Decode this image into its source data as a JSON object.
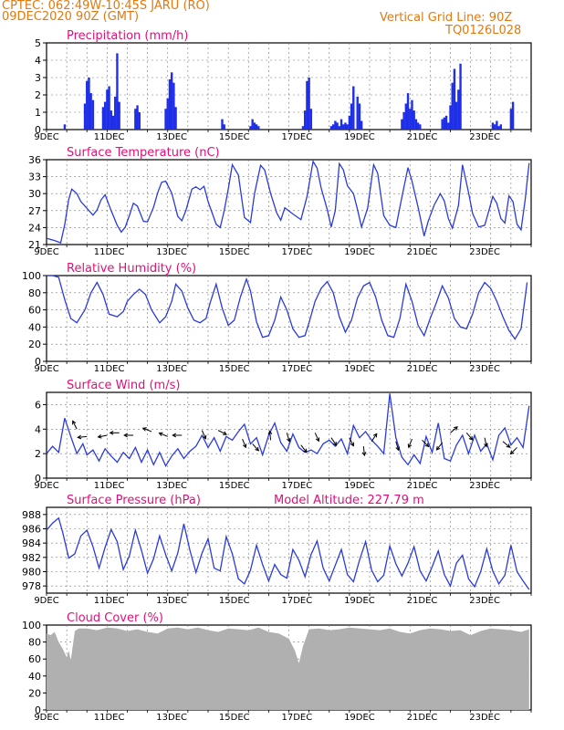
{
  "header": {
    "line1": "CPTEC:  062:49W-10:45S  JARU (RO)",
    "line2": "09DEC2020 90Z (GMT)",
    "grid_note": "Vertical Grid Line: 90Z",
    "run_code": "TQ0126L028"
  },
  "colors": {
    "header": "#e07a10",
    "title": "#e0107a",
    "line": "#2b3bd8",
    "bar": "#1f2fe8",
    "cloud": "#b0b0b0"
  },
  "chart_data": [
    {
      "id": "precip",
      "type": "bar",
      "title": "Precipitation (mm/h)",
      "ylim": [
        0,
        5
      ],
      "yticks": [
        "0",
        "1",
        "2",
        "3",
        "4",
        "5"
      ],
      "xticks": [
        "9DEC",
        "11DEC",
        "13DEC",
        "15DEC",
        "17DEC",
        "19DEC",
        "21DEC",
        "23DEC"
      ],
      "x": [
        0.9,
        1.9,
        2.0,
        2.1,
        2.2,
        2.3,
        2.8,
        2.9,
        3.0,
        3.1,
        3.2,
        3.3,
        3.4,
        3.5,
        3.6,
        4.4,
        4.5,
        4.6,
        5.9,
        6.0,
        6.1,
        6.2,
        6.3,
        6.4,
        8.7,
        8.8,
        10.1,
        10.2,
        10.3,
        10.4,
        10.5,
        12.7,
        12.8,
        12.9,
        13.0,
        13.1,
        14.1,
        14.2,
        14.3,
        14.4,
        14.5,
        14.6,
        14.7,
        14.8,
        14.9,
        15.0,
        15.1,
        15.2,
        15.4,
        15.5,
        15.6,
        17.6,
        17.7,
        17.8,
        17.9,
        18.0,
        18.1,
        18.2,
        18.3,
        18.4,
        18.5,
        19.6,
        19.7,
        19.8,
        19.9,
        20.0,
        20.1,
        20.2,
        20.3,
        20.4,
        20.5,
        22.1,
        22.2,
        22.3,
        22.4,
        22.5,
        23.0,
        23.1
      ],
      "values": [
        0.3,
        1.5,
        2.8,
        3.0,
        2.1,
        1.7,
        1.3,
        1.6,
        2.3,
        2.5,
        1.1,
        0.8,
        1.9,
        4.4,
        1.6,
        1.2,
        1.4,
        1.0,
        1.2,
        1.8,
        2.9,
        3.3,
        2.7,
        1.3,
        0.6,
        0.3,
        0.2,
        0.6,
        0.4,
        0.3,
        0.2,
        0.2,
        1.1,
        2.8,
        3.0,
        1.2,
        0.2,
        0.3,
        0.5,
        0.4,
        0.2,
        0.6,
        0.3,
        0.4,
        0.3,
        0.8,
        1.5,
        2.5,
        1.9,
        1.5,
        0.5,
        0.6,
        1.0,
        1.5,
        2.1,
        1.2,
        1.7,
        1.1,
        0.6,
        0.4,
        0.3,
        0.6,
        0.7,
        0.8,
        0.4,
        1.4,
        2.7,
        3.5,
        1.6,
        2.3,
        3.8,
        0.4,
        0.3,
        0.5,
        0.2,
        0.3,
        1.2,
        1.6
      ]
    },
    {
      "id": "temp",
      "type": "line",
      "title": "Surface Temperature (nC)",
      "ylim": [
        21,
        36
      ],
      "yticks": [
        "21",
        "24",
        "27",
        "30",
        "33",
        "36"
      ],
      "xticks": [
        "9DEC",
        "11DEC",
        "13DEC",
        "15DEC",
        "17DEC",
        "19DEC",
        "21DEC",
        "23DEC"
      ],
      "x": [
        0.0,
        0.4,
        0.7,
        0.9,
        1.1,
        1.25,
        1.5,
        1.7,
        2.0,
        2.3,
        2.5,
        2.7,
        2.9,
        3.2,
        3.5,
        3.7,
        3.9,
        4.1,
        4.3,
        4.5,
        4.8,
        5.0,
        5.3,
        5.5,
        5.7,
        5.9,
        6.2,
        6.5,
        6.7,
        6.9,
        7.2,
        7.4,
        7.6,
        7.8,
        8.0,
        8.4,
        8.6,
        8.8,
        9.0,
        9.2,
        9.5,
        9.8,
        10.1,
        10.3,
        10.6,
        10.8,
        11.1,
        11.4,
        11.6,
        11.8,
        12.2,
        12.6,
        12.9,
        13.2,
        13.4,
        13.6,
        13.9,
        14.1,
        14.3,
        14.5,
        14.7,
        14.9,
        15.2,
        15.4,
        15.6,
        15.9,
        16.2,
        16.4,
        16.7,
        17.0,
        17.3,
        17.6,
        17.9,
        18.1,
        18.4,
        18.7,
        18.9,
        19.2,
        19.5,
        19.7,
        19.9,
        20.1,
        20.4,
        20.6,
        20.9,
        21.1,
        21.4,
        21.7,
        21.9,
        22.1,
        22.3,
        22.5,
        22.7,
        22.9,
        23.1,
        23.3,
        23.5,
        23.7,
        23.9
      ],
      "values": [
        22.1,
        21.7,
        21.3,
        24.5,
        29.0,
        30.8,
        30.0,
        28.6,
        27.4,
        26.2,
        27.1,
        28.9,
        29.8,
        27.0,
        24.4,
        23.2,
        24.1,
        26.1,
        28.3,
        27.8,
        25.1,
        25.0,
        27.6,
        30.1,
        32.0,
        32.2,
        30.1,
        26.0,
        25.2,
        27.0,
        30.8,
        31.2,
        30.7,
        31.3,
        28.6,
        24.6,
        24.0,
        27.0,
        30.8,
        35.1,
        33.3,
        25.8,
        24.9,
        30.0,
        35.0,
        34.2,
        30.0,
        26.6,
        25.3,
        27.5,
        26.4,
        25.4,
        29.5,
        35.7,
        34.5,
        31.0,
        27.2,
        24.1,
        27.0,
        35.3,
        34.2,
        31.4,
        30.0,
        27.2,
        24.1,
        27.4,
        35.1,
        33.6,
        26.1,
        24.4,
        24.0,
        29.4,
        34.6,
        32.2,
        27.6,
        22.5,
        25.1,
        28.0,
        30.0,
        28.7,
        25.6,
        23.9,
        27.9,
        35.1,
        30.2,
        26.5,
        24.1,
        24.4,
        26.9,
        29.5,
        28.3,
        25.6,
        24.8,
        29.6,
        28.6,
        24.6,
        23.6,
        28.8,
        35.4
      ]
    },
    {
      "id": "rh",
      "type": "line",
      "title": "Relative Humidity (%)",
      "ylim": [
        0,
        100
      ],
      "yticks": [
        "0",
        "20",
        "40",
        "60",
        "80",
        "100"
      ],
      "xticks": [
        "9DEC",
        "11DEC",
        "13DEC",
        "15DEC",
        "17DEC",
        "19DEC",
        "21DEC",
        "23DEC"
      ],
      "x": [
        0.0,
        0.3,
        0.6,
        0.9,
        1.2,
        1.5,
        1.9,
        2.2,
        2.5,
        2.8,
        3.1,
        3.5,
        3.8,
        4.0,
        4.3,
        4.6,
        4.9,
        5.2,
        5.6,
        5.9,
        6.2,
        6.4,
        6.7,
        7.0,
        7.3,
        7.6,
        7.9,
        8.1,
        8.4,
        8.7,
        9.0,
        9.3,
        9.6,
        9.9,
        10.1,
        10.4,
        10.7,
        11.0,
        11.3,
        11.6,
        11.9,
        12.2,
        12.5,
        12.8,
        13.0,
        13.3,
        13.6,
        13.9,
        14.2,
        14.5,
        14.8,
        15.1,
        15.4,
        15.7,
        16.0,
        16.3,
        16.6,
        16.9,
        17.2,
        17.5,
        17.8,
        18.1,
        18.4,
        18.7,
        19.0,
        19.3,
        19.6,
        19.9,
        20.2,
        20.5,
        20.8,
        21.1,
        21.4,
        21.7,
        22.0,
        22.3,
        22.6,
        22.9,
        23.2,
        23.5,
        23.8
      ],
      "values": [
        100,
        100,
        98,
        72,
        50,
        45,
        60,
        80,
        92,
        78,
        55,
        52,
        58,
        70,
        78,
        84,
        78,
        60,
        45,
        52,
        70,
        90,
        82,
        62,
        48,
        45,
        50,
        68,
        90,
        62,
        42,
        48,
        75,
        96,
        82,
        46,
        28,
        30,
        48,
        75,
        60,
        38,
        28,
        30,
        45,
        70,
        85,
        93,
        80,
        52,
        34,
        48,
        74,
        88,
        92,
        75,
        48,
        30,
        28,
        50,
        90,
        70,
        42,
        30,
        50,
        68,
        88,
        74,
        50,
        40,
        38,
        55,
        80,
        92,
        85,
        70,
        52,
        36,
        26,
        38,
        92
      ]
    },
    {
      "id": "wind",
      "type": "line",
      "title": "Surface Wind (m/s)",
      "ylim": [
        0,
        7
      ],
      "yticks": [
        "0",
        "2",
        "4",
        "6"
      ],
      "xticks": [
        "9DEC",
        "11DEC",
        "13DEC",
        "15DEC",
        "17DEC",
        "19DEC",
        "21DEC",
        "23DEC"
      ],
      "x": [
        0.0,
        0.3,
        0.6,
        0.9,
        1.2,
        1.5,
        1.8,
        2.0,
        2.3,
        2.6,
        2.9,
        3.2,
        3.5,
        3.8,
        4.1,
        4.4,
        4.7,
        5.0,
        5.3,
        5.6,
        5.9,
        6.2,
        6.5,
        6.8,
        7.1,
        7.4,
        7.7,
        8.0,
        8.3,
        8.6,
        8.9,
        9.2,
        9.5,
        9.8,
        10.1,
        10.4,
        10.7,
        11.0,
        11.3,
        11.6,
        11.9,
        12.2,
        12.5,
        12.8,
        13.1,
        13.4,
        13.7,
        14.0,
        14.3,
        14.6,
        14.9,
        15.2,
        15.5,
        15.8,
        16.1,
        16.4,
        16.7,
        17.0,
        17.3,
        17.6,
        17.9,
        18.2,
        18.5,
        18.8,
        19.1,
        19.4,
        19.7,
        20.0,
        20.3,
        20.6,
        20.9,
        21.2,
        21.5,
        21.8,
        22.1,
        22.4,
        22.7,
        23.0,
        23.3,
        23.6,
        23.9
      ],
      "values": [
        2.0,
        2.6,
        2.1,
        4.9,
        3.4,
        2.0,
        2.8,
        1.9,
        2.3,
        1.4,
        2.4,
        1.8,
        1.3,
        2.1,
        1.6,
        2.5,
        1.3,
        2.3,
        1.1,
        2.1,
        1.0,
        1.8,
        2.4,
        1.6,
        2.2,
        2.6,
        3.5,
        2.5,
        3.3,
        2.2,
        3.4,
        3.1,
        3.8,
        4.4,
        2.8,
        3.3,
        1.9,
        3.5,
        4.5,
        2.9,
        2.2,
        3.6,
        2.5,
        2.1,
        2.3,
        2.0,
        2.8,
        3.1,
        2.6,
        3.2,
        2.0,
        4.3,
        3.3,
        3.8,
        3.1,
        2.6,
        2.0,
        6.9,
        3.3,
        1.7,
        1.1,
        1.9,
        1.2,
        3.4,
        2.1,
        4.5,
        1.6,
        1.4,
        2.7,
        3.5,
        2.0,
        3.5,
        2.2,
        2.8,
        1.5,
        3.5,
        4.1,
        2.7,
        3.3,
        2.5,
        5.9
      ]
    },
    {
      "id": "press",
      "type": "line",
      "title": "Surface Pressure (hPa)",
      "extra": "Model Altitude: 227.79  m",
      "ylim": [
        977,
        989
      ],
      "yticks": [
        "978",
        "980",
        "982",
        "984",
        "986",
        "988"
      ],
      "xticks": [
        "9DEC",
        "11DEC",
        "13DEC",
        "15DEC",
        "17DEC",
        "19DEC",
        "21DEC",
        "23DEC"
      ],
      "x": [
        0.0,
        0.3,
        0.6,
        0.8,
        1.1,
        1.4,
        1.7,
        2.0,
        2.3,
        2.6,
        2.9,
        3.2,
        3.5,
        3.8,
        4.1,
        4.4,
        4.7,
        5.0,
        5.3,
        5.6,
        5.9,
        6.2,
        6.5,
        6.8,
        7.1,
        7.4,
        7.7,
        8.0,
        8.3,
        8.6,
        8.9,
        9.2,
        9.5,
        9.8,
        10.1,
        10.4,
        10.7,
        11.0,
        11.3,
        11.6,
        11.9,
        12.2,
        12.5,
        12.8,
        13.1,
        13.4,
        13.7,
        14.0,
        14.3,
        14.6,
        14.9,
        15.2,
        15.5,
        15.8,
        16.1,
        16.4,
        16.7,
        17.0,
        17.3,
        17.6,
        17.9,
        18.2,
        18.5,
        18.8,
        19.1,
        19.4,
        19.7,
        20.0,
        20.3,
        20.6,
        20.9,
        21.2,
        21.5,
        21.8,
        22.1,
        22.4,
        22.7,
        23.0,
        23.3,
        23.6,
        23.9
      ],
      "values": [
        985.8,
        986.8,
        987.5,
        985.5,
        981.9,
        982.5,
        985.0,
        985.8,
        983.5,
        980.5,
        983.4,
        985.9,
        984.2,
        980.3,
        982.2,
        985.8,
        983.0,
        979.8,
        981.8,
        985.0,
        982.4,
        980.1,
        982.6,
        986.7,
        983.0,
        979.9,
        982.6,
        984.6,
        980.5,
        980.1,
        984.9,
        982.5,
        979.0,
        978.3,
        980.2,
        983.7,
        981.0,
        978.7,
        981.0,
        979.6,
        979.1,
        983.1,
        981.6,
        979.3,
        982.4,
        984.3,
        980.5,
        978.7,
        980.9,
        983.1,
        979.6,
        978.6,
        981.6,
        984.2,
        980.2,
        978.6,
        979.5,
        983.6,
        981.1,
        979.4,
        981.2,
        983.5,
        980.1,
        978.7,
        980.7,
        982.9,
        979.6,
        978.0,
        981.2,
        982.3,
        979.0,
        977.9,
        980.0,
        983.2,
        980.1,
        978.3,
        979.5,
        983.7,
        980.0,
        978.7,
        977.5
      ]
    },
    {
      "id": "cloud",
      "type": "area",
      "title": "Cloud Cover (%)",
      "ylim": [
        0,
        100
      ],
      "yticks": [
        "0",
        "20",
        "40",
        "60",
        "80",
        "100"
      ],
      "xticks": [
        "9DEC",
        "11DEC",
        "13DEC",
        "15DEC",
        "17DEC",
        "19DEC",
        "21DEC",
        "23DEC"
      ],
      "x": [
        0.0,
        0.2,
        0.4,
        0.6,
        0.8,
        1.0,
        1.1,
        1.2,
        1.4,
        1.6,
        2.0,
        2.5,
        3.0,
        3.5,
        4.0,
        4.5,
        5.0,
        5.5,
        6.0,
        6.5,
        7.0,
        7.5,
        8.0,
        8.5,
        9.0,
        9.5,
        10.0,
        10.5,
        11.0,
        11.5,
        12.0,
        12.3,
        12.5,
        12.7,
        13.0,
        13.5,
        14.0,
        14.5,
        15.0,
        15.5,
        16.0,
        16.5,
        17.0,
        17.5,
        18.0,
        18.5,
        19.0,
        19.5,
        20.0,
        20.5,
        21.0,
        21.5,
        22.0,
        22.5,
        23.0,
        23.5,
        23.9
      ],
      "values": [
        90,
        88,
        92,
        80,
        72,
        62,
        70,
        58,
        93,
        96,
        96,
        94,
        97,
        96,
        93,
        95,
        92,
        90,
        96,
        97,
        95,
        97,
        94,
        92,
        96,
        95,
        94,
        97,
        92,
        90,
        84,
        70,
        55,
        75,
        95,
        96,
        94,
        95,
        97,
        96,
        95,
        94,
        96,
        92,
        90,
        94,
        96,
        95,
        93,
        94,
        88,
        93,
        96,
        95,
        94,
        92,
        95
      ]
    }
  ]
}
